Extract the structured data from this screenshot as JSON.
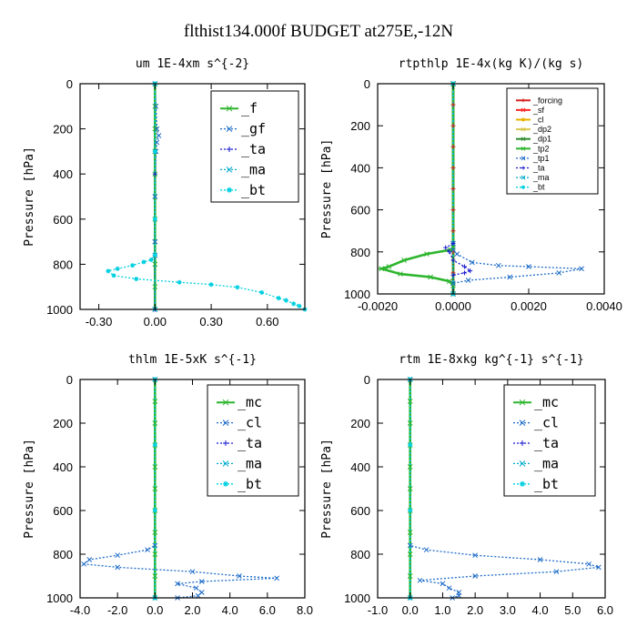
{
  "figure": {
    "title": "flthist134.000f  BUDGET at275E,-12N"
  },
  "chart_data": [
    {
      "type": "line",
      "title": "um   1E-4xm s^{-2}",
      "ylabel": "Pressure [hPa]",
      "xlim": [
        -0.4,
        0.8
      ],
      "ylim": [
        1000,
        0
      ],
      "xticks": [
        "-0.30",
        "0.00",
        "0.30",
        "0.60"
      ],
      "xtick_values": [
        -0.3,
        0.0,
        0.3,
        0.6
      ],
      "yticks": [
        "0",
        "200",
        "400",
        "600",
        "800",
        "1000"
      ],
      "ytick_values": [
        0,
        200,
        400,
        600,
        800,
        1000
      ],
      "legend": "top-right",
      "series": [
        {
          "name": "_f",
          "color": "#2db52d",
          "dashed": false,
          "marker": "x",
          "points": [
            [
              0.0,
              0
            ],
            [
              0.0,
              100
            ],
            [
              0.0,
              200
            ],
            [
              0.0,
              300
            ],
            [
              0.0,
              400
            ],
            [
              0.0,
              500
            ],
            [
              0.0,
              600
            ],
            [
              0.0,
              700
            ],
            [
              0.0,
              800
            ],
            [
              0.0,
              900
            ],
            [
              0.0,
              1000
            ]
          ]
        },
        {
          "name": "_gf",
          "color": "#1e6cc8",
          "dashed": true,
          "marker": "x",
          "points": [
            [
              0.0,
              0
            ],
            [
              0.005,
              100
            ],
            [
              0.01,
              200
            ],
            [
              0.02,
              230
            ],
            [
              0.01,
              260
            ],
            [
              0.005,
              300
            ],
            [
              0.0,
              500
            ],
            [
              0.0,
              700
            ],
            [
              0.0,
              760
            ],
            [
              0.0,
              1000
            ]
          ]
        },
        {
          "name": "_ta",
          "color": "#1a1ad2",
          "dashed": true,
          "marker": "+",
          "points": [
            [
              0.0,
              0
            ],
            [
              0.0,
              400
            ],
            [
              0.0,
              760
            ],
            [
              0.0,
              1000
            ]
          ]
        },
        {
          "name": "_ma",
          "color": "#00aacc",
          "dashed": true,
          "marker": "x",
          "points": [
            [
              0.0,
              0
            ],
            [
              0.0,
              1000
            ]
          ]
        },
        {
          "name": "_bt",
          "color": "#00d0e0",
          "dashed": true,
          "marker": "*",
          "points": [
            [
              0.0,
              0
            ],
            [
              0.0,
              300
            ],
            [
              0.0,
              600
            ],
            [
              0.0,
              760
            ],
            [
              -0.02,
              780
            ],
            [
              -0.06,
              790
            ],
            [
              -0.12,
              805
            ],
            [
              -0.2,
              820
            ],
            [
              -0.25,
              830
            ],
            [
              -0.22,
              850
            ],
            [
              -0.1,
              865
            ],
            [
              0.13,
              880
            ],
            [
              0.3,
              890
            ],
            [
              0.44,
              902
            ],
            [
              0.57,
              925
            ],
            [
              0.66,
              950
            ],
            [
              0.7,
              960
            ],
            [
              0.74,
              975
            ],
            [
              0.77,
              985
            ],
            [
              0.8,
              1000
            ]
          ]
        }
      ]
    },
    {
      "type": "line",
      "title": "rtpthlp   1E-4x(kg K)/(kg s)",
      "ylabel": "Pressure [hPa]",
      "xlim": [
        -0.002,
        0.004
      ],
      "ylim": [
        1000,
        0
      ],
      "xticks": [
        "-0.0020",
        "0.0000",
        "0.0020",
        "0.0040"
      ],
      "xtick_values": [
        -0.002,
        0.0,
        0.002,
        0.004
      ],
      "yticks": [
        "0",
        "200",
        "400",
        "600",
        "800",
        "1000"
      ],
      "ytick_values": [
        0,
        200,
        400,
        600,
        800,
        1000
      ],
      "legend": "top-right",
      "series": [
        {
          "name": "_forcing",
          "color": "#d62020",
          "dashed": false,
          "marker": "+",
          "points": [
            [
              0.0,
              0
            ],
            [
              0.0,
              100
            ],
            [
              0.0,
              200
            ],
            [
              0.0,
              300
            ],
            [
              0.0,
              400
            ],
            [
              0.0,
              500
            ],
            [
              0.0,
              600
            ],
            [
              0.0,
              700
            ],
            [
              0.0,
              800
            ],
            [
              0.0,
              900
            ],
            [
              0.0,
              1000
            ]
          ]
        },
        {
          "name": "_sf",
          "color": "#ff2a2a",
          "dashed": false,
          "marker": "x",
          "points": [
            [
              0.0,
              0
            ],
            [
              0.0,
              1000
            ]
          ]
        },
        {
          "name": "_cl",
          "color": "#e8b000",
          "dashed": false,
          "marker": "*",
          "points": [
            [
              0.0,
              0
            ],
            [
              0.0,
              1000
            ]
          ]
        },
        {
          "name": "_dp2",
          "color": "#d8c850",
          "dashed": false,
          "marker": "x",
          "points": [
            [
              0.0,
              0
            ],
            [
              0.0,
              1000
            ]
          ]
        },
        {
          "name": "_dp1",
          "color": "#2e8b2e",
          "dashed": false,
          "marker": "x",
          "points": [
            [
              0.0,
              0
            ],
            [
              0.0,
              1000
            ]
          ]
        },
        {
          "name": "_tp2",
          "color": "#2db52d",
          "dashed": false,
          "marker": "x",
          "points": [
            [
              0.0,
              0
            ],
            [
              0.0,
              760
            ],
            [
              0.0,
              780
            ],
            [
              -7e-05,
              790
            ],
            [
              -0.0007,
              810
            ],
            [
              -0.0013,
              840
            ],
            [
              -0.0017,
              870
            ],
            [
              -0.0019,
              880
            ],
            [
              -0.0014,
              905
            ],
            [
              -0.0006,
              920
            ],
            [
              -0.0001,
              940
            ],
            [
              0.0,
              960
            ],
            [
              0.0,
              1000
            ]
          ]
        },
        {
          "name": "_tp1",
          "color": "#1e6cc8",
          "dashed": true,
          "marker": "x",
          "points": [
            [
              0.0,
              0
            ],
            [
              0.0,
              760
            ],
            [
              0.0,
              790
            ],
            [
              0.0001,
              810
            ],
            [
              0.0005,
              850
            ],
            [
              0.0012,
              865
            ],
            [
              0.002,
              870
            ],
            [
              0.0034,
              880
            ],
            [
              0.0028,
              900
            ],
            [
              0.0015,
              920
            ],
            [
              0.0004,
              935
            ],
            [
              0.0,
              950
            ],
            [
              0.0,
              1000
            ]
          ]
        },
        {
          "name": "_ta",
          "color": "#1a1ad2",
          "dashed": true,
          "marker": "+",
          "points": [
            [
              0.0,
              0
            ],
            [
              0.0,
              760
            ],
            [
              -0.0002,
              780
            ],
            [
              -0.0001,
              800
            ],
            [
              0.0,
              840
            ],
            [
              0.0003,
              870
            ],
            [
              0.00045,
              890
            ],
            [
              0.0003,
              900
            ],
            [
              0.0,
              910
            ],
            [
              0.0,
              1000
            ]
          ]
        },
        {
          "name": "_ma",
          "color": "#00aacc",
          "dashed": true,
          "marker": "x",
          "points": [
            [
              0.0,
              0
            ],
            [
              0.0,
              1000
            ]
          ]
        },
        {
          "name": "_bt",
          "color": "#00d0e0",
          "dashed": true,
          "marker": "*",
          "points": [
            [
              0.0,
              0
            ],
            [
              0.0,
              1000
            ]
          ]
        }
      ]
    },
    {
      "type": "line",
      "title": "thlm   1E-5xK s^{-1}",
      "ylabel": "Pressure [hPa]",
      "xlim": [
        -4.0,
        8.0
      ],
      "ylim": [
        1000,
        0
      ],
      "xticks": [
        "-4.0",
        "-2.0",
        "0.0",
        "2.0",
        "4.0",
        "6.0",
        "8.0"
      ],
      "xtick_values": [
        -4.0,
        -2.0,
        0.0,
        2.0,
        4.0,
        6.0,
        8.0
      ],
      "yticks": [
        "0",
        "200",
        "400",
        "600",
        "800",
        "1000"
      ],
      "ytick_values": [
        0,
        200,
        400,
        600,
        800,
        1000
      ],
      "legend": "top-right",
      "series": [
        {
          "name": "_mc",
          "color": "#2db52d",
          "dashed": false,
          "marker": "x",
          "points": [
            [
              0.0,
              0
            ],
            [
              0.0,
              100
            ],
            [
              0.0,
              200
            ],
            [
              0.0,
              300
            ],
            [
              0.0,
              400
            ],
            [
              0.0,
              500
            ],
            [
              0.0,
              600
            ],
            [
              0.0,
              700
            ],
            [
              0.0,
              800
            ],
            [
              0.0,
              900
            ],
            [
              0.0,
              1000
            ]
          ]
        },
        {
          "name": "_cl",
          "color": "#1e6cc8",
          "dashed": true,
          "marker": "x",
          "points": [
            [
              0.0,
              0
            ],
            [
              0.0,
              760
            ],
            [
              -0.4,
              780
            ],
            [
              -2.0,
              805
            ],
            [
              -3.5,
              825
            ],
            [
              -3.8,
              845
            ],
            [
              -2.0,
              860
            ],
            [
              2.0,
              880
            ],
            [
              4.5,
              900
            ],
            [
              6.5,
              910
            ],
            [
              2.5,
              925
            ],
            [
              1.2,
              935
            ],
            [
              2.2,
              955
            ],
            [
              2.5,
              975
            ],
            [
              2.3,
              990
            ],
            [
              1.2,
              1000
            ]
          ]
        },
        {
          "name": "_ta",
          "color": "#1a1ad2",
          "dashed": true,
          "marker": "+",
          "points": [
            [
              0.0,
              0
            ],
            [
              0.0,
              1000
            ]
          ]
        },
        {
          "name": "_ma",
          "color": "#00aacc",
          "dashed": true,
          "marker": "x",
          "points": [
            [
              0.0,
              0
            ],
            [
              0.0,
              1000
            ]
          ]
        },
        {
          "name": "_bt",
          "color": "#00d0e0",
          "dashed": true,
          "marker": "*",
          "points": [
            [
              0.0,
              0
            ],
            [
              0.0,
              300
            ],
            [
              0.0,
              600
            ],
            [
              0.0,
              1000
            ]
          ]
        }
      ]
    },
    {
      "type": "line",
      "title": "rtm   1E-8xkg kg^{-1} s^{-1}",
      "ylabel": "Pressure [hPa]",
      "xlim": [
        -1.0,
        6.0
      ],
      "ylim": [
        1000,
        0
      ],
      "xticks": [
        "-1.0",
        "0.0",
        "1.0",
        "2.0",
        "3.0",
        "4.0",
        "5.0",
        "6.0"
      ],
      "xtick_values": [
        -1.0,
        0.0,
        1.0,
        2.0,
        3.0,
        4.0,
        5.0,
        6.0
      ],
      "yticks": [
        "0",
        "200",
        "400",
        "600",
        "800",
        "1000"
      ],
      "ytick_values": [
        0,
        200,
        400,
        600,
        800,
        1000
      ],
      "legend": "top-right",
      "series": [
        {
          "name": "_mc",
          "color": "#2db52d",
          "dashed": false,
          "marker": "x",
          "points": [
            [
              0.0,
              0
            ],
            [
              0.0,
              100
            ],
            [
              0.0,
              200
            ],
            [
              0.0,
              300
            ],
            [
              0.0,
              400
            ],
            [
              0.0,
              500
            ],
            [
              0.0,
              600
            ],
            [
              0.0,
              700
            ],
            [
              0.0,
              800
            ],
            [
              0.0,
              900
            ],
            [
              0.0,
              1000
            ]
          ]
        },
        {
          "name": "_cl",
          "color": "#1e6cc8",
          "dashed": true,
          "marker": "x",
          "points": [
            [
              0.0,
              0
            ],
            [
              0.0,
              760
            ],
            [
              0.5,
              780
            ],
            [
              2.0,
              805
            ],
            [
              4.0,
              825
            ],
            [
              5.5,
              845
            ],
            [
              5.8,
              860
            ],
            [
              4.5,
              880
            ],
            [
              2.0,
              900
            ],
            [
              0.3,
              920
            ],
            [
              1.0,
              935
            ],
            [
              1.2,
              955
            ],
            [
              1.5,
              975
            ],
            [
              1.5,
              990
            ],
            [
              1.3,
              1000
            ]
          ]
        },
        {
          "name": "_ta",
          "color": "#1a1ad2",
          "dashed": true,
          "marker": "+",
          "points": [
            [
              0.0,
              0
            ],
            [
              0.0,
              1000
            ]
          ]
        },
        {
          "name": "_ma",
          "color": "#00aacc",
          "dashed": true,
          "marker": "x",
          "points": [
            [
              0.0,
              0
            ],
            [
              0.0,
              1000
            ]
          ]
        },
        {
          "name": "_bt",
          "color": "#00d0e0",
          "dashed": true,
          "marker": "*",
          "points": [
            [
              0.0,
              0
            ],
            [
              0.0,
              300
            ],
            [
              0.0,
              600
            ],
            [
              0.0,
              1000
            ]
          ]
        }
      ]
    }
  ]
}
